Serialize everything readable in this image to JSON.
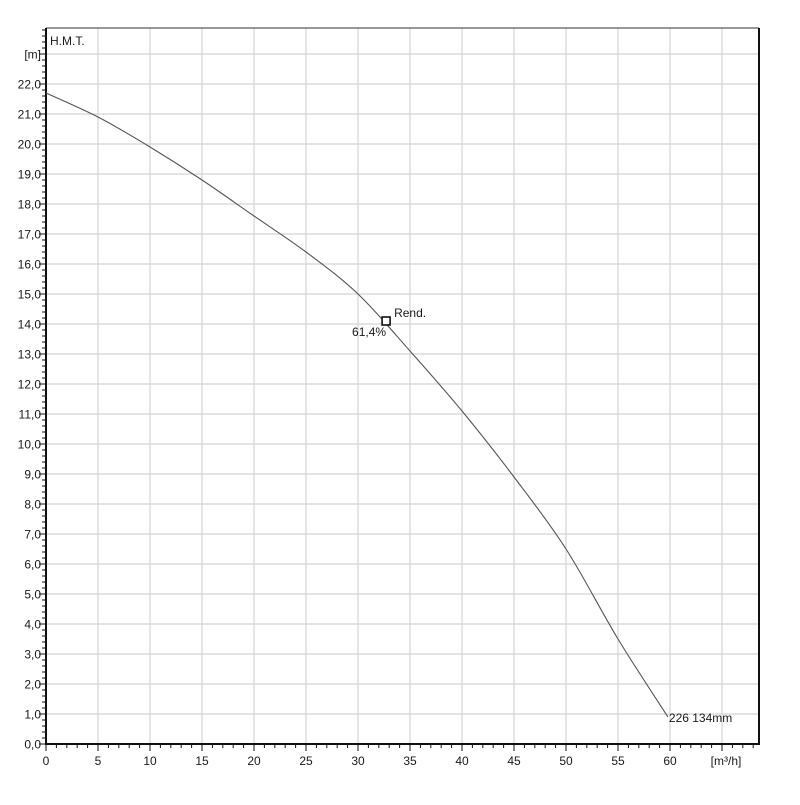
{
  "chart_data": {
    "type": "line",
    "title": "",
    "ylabel": "H.M.T.",
    "yunit": "[m]",
    "xlabel": "",
    "xunit": "[m³/h]",
    "xlim": [
      0,
      68.6
    ],
    "ylim": [
      0,
      23.9
    ],
    "grid": true,
    "x_ticks": [
      0,
      5,
      10,
      15,
      20,
      25,
      30,
      35,
      40,
      45,
      50,
      55,
      60
    ],
    "x_tick_labels": [
      "0",
      "5",
      "10",
      "15",
      "20",
      "25",
      "30",
      "35",
      "40",
      "45",
      "50",
      "55",
      "60"
    ],
    "y_ticks": [
      0,
      1,
      2,
      3,
      4,
      5,
      6,
      7,
      8,
      9,
      10,
      11,
      12,
      13,
      14,
      15,
      16,
      17,
      18,
      19,
      20,
      21,
      22
    ],
    "y_tick_labels": [
      "0,0",
      "1,0",
      "2,0",
      "3,0",
      "4,0",
      "5,0",
      "6,0",
      "7,0",
      "8,0",
      "9,0",
      "10,0",
      "11,0",
      "12,0",
      "13,0",
      "14,0",
      "15,0",
      "16,0",
      "17,0",
      "18,0",
      "19,0",
      "20,0",
      "21,0",
      "22,0"
    ],
    "series": [
      {
        "name": "226 134mm",
        "x": [
          0,
          5,
          10,
          15,
          20,
          25,
          30,
          35,
          40,
          45,
          50,
          55,
          59.8
        ],
        "y": [
          21.7,
          20.9,
          19.9,
          18.8,
          17.6,
          16.4,
          15.0,
          13.1,
          11.1,
          8.9,
          6.5,
          3.5,
          0.9
        ]
      }
    ],
    "annotations": [
      {
        "type": "marker",
        "x": 32.7,
        "y": 14.1,
        "label": "Rend.",
        "value_label": "61,4%"
      },
      {
        "type": "curve-label",
        "x": 59.8,
        "y": 0.9,
        "label": "226 134mm"
      }
    ]
  }
}
